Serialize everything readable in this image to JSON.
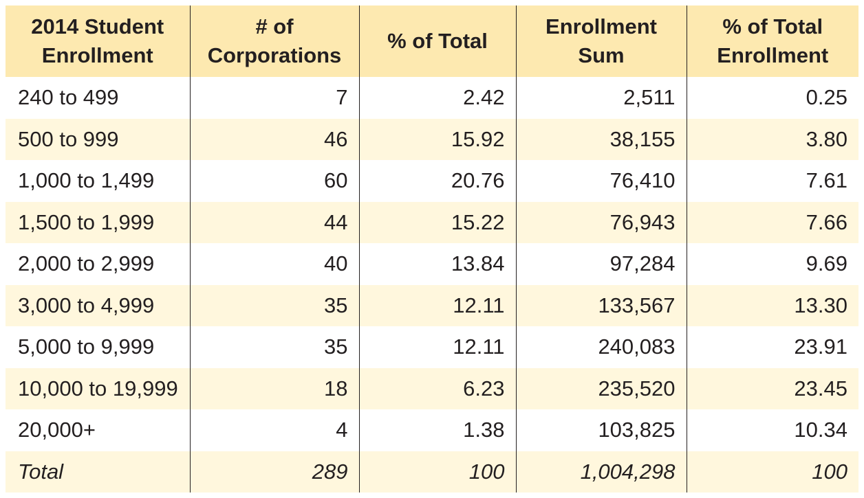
{
  "table": {
    "headers": [
      "2014 Student Enrollment",
      "# of Corporations",
      "% of Total",
      "Enrollment Sum",
      "% of Total Enrollment"
    ],
    "header_lines": [
      [
        "2014 Student",
        "Enrollment"
      ],
      [
        "# of",
        "Corporations"
      ],
      [
        "% of Total",
        ""
      ],
      [
        "Enrollment",
        "Sum"
      ],
      [
        "% of Total",
        "Enrollment"
      ]
    ],
    "rows": [
      [
        "240 to 499",
        "7",
        "2.42",
        "2,511",
        "0.25"
      ],
      [
        "500 to 999",
        "46",
        "15.92",
        "38,155",
        "3.80"
      ],
      [
        "1,000 to 1,499",
        "60",
        "20.76",
        "76,410",
        "7.61"
      ],
      [
        "1,500 to 1,999",
        "44",
        "15.22",
        "76,943",
        "7.66"
      ],
      [
        "2,000 to 2,999",
        "40",
        "13.84",
        "97,284",
        "9.69"
      ],
      [
        "3,000 to 4,999",
        "35",
        "12.11",
        "133,567",
        "13.30"
      ],
      [
        "5,000 to 9,999",
        "35",
        "12.11",
        "240,083",
        "23.91"
      ],
      [
        "10,000 to 19,999",
        "18",
        "6.23",
        "235,520",
        "23.45"
      ],
      [
        "20,000+",
        "4",
        "1.38",
        "103,825",
        "10.34"
      ]
    ],
    "total": [
      "Total",
      "289",
      "100",
      "1,004,298",
      "100"
    ]
  },
  "colors": {
    "header_bg": "#fde9b0",
    "band_bg": "#fff7dd",
    "rule": "#231f20",
    "text": "#231f20"
  }
}
